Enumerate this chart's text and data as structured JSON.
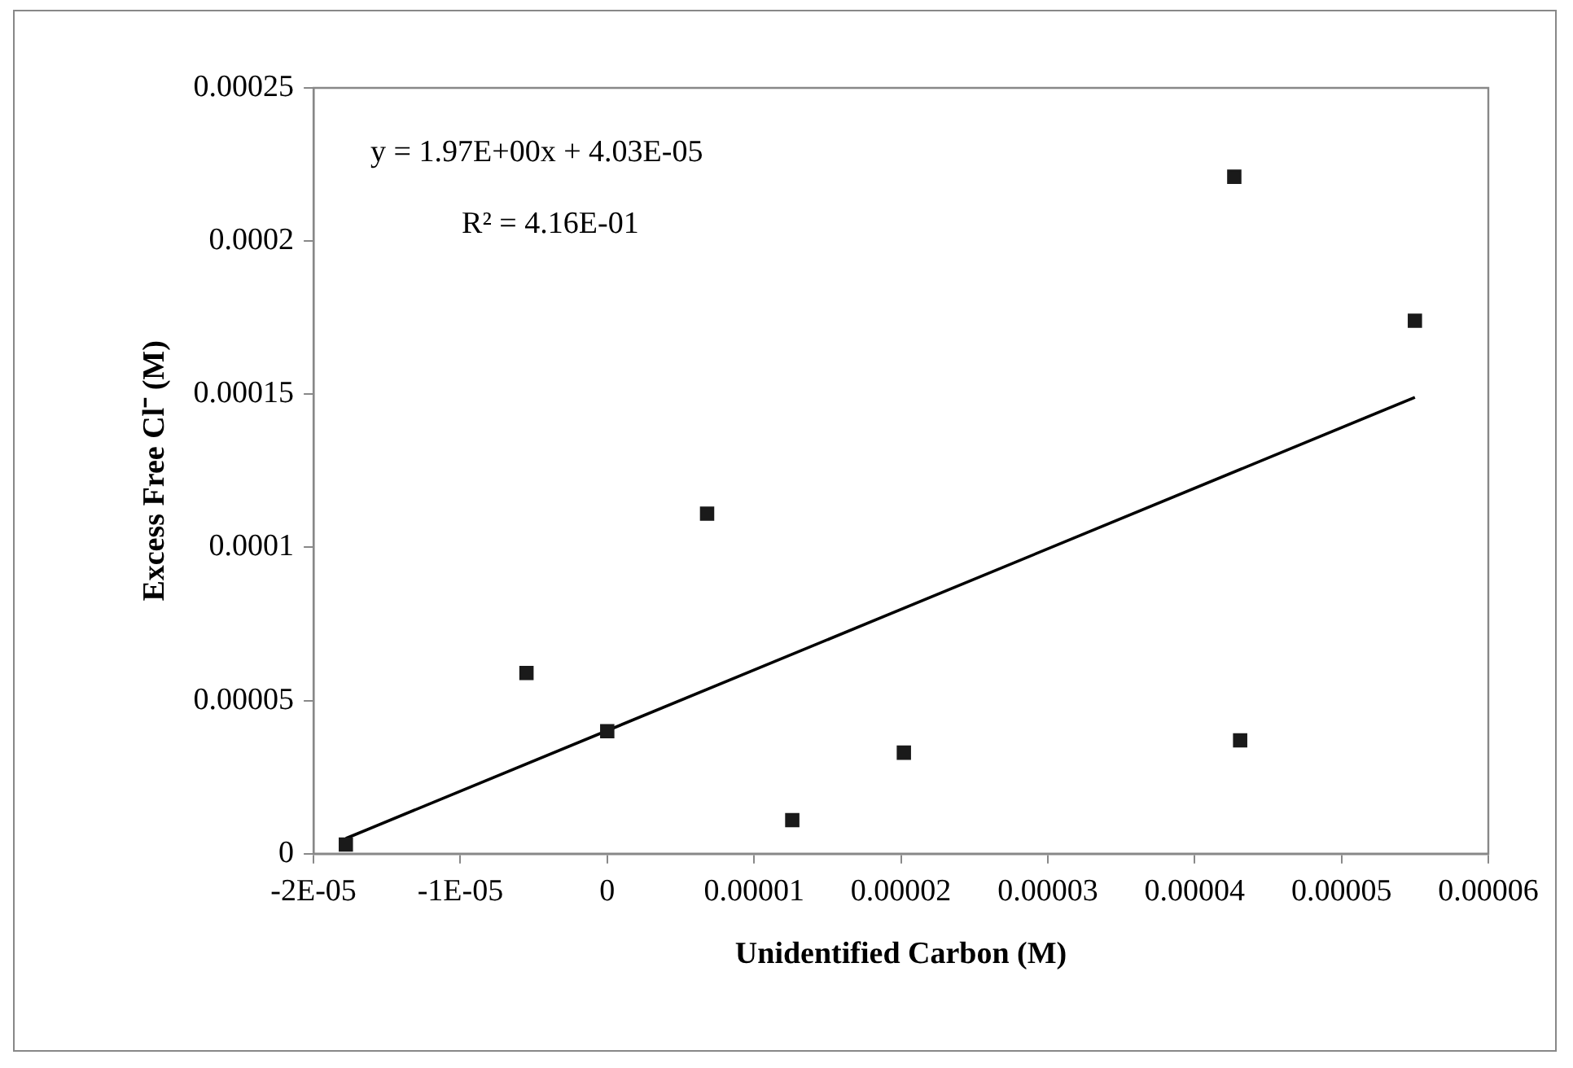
{
  "chart_data": {
    "type": "scatter",
    "xlabel": "Unidentified Carbon (M)",
    "ylabel": "Excess Free Cl⁻ (M)",
    "xlim": [
      -2e-05,
      6e-05
    ],
    "xticks": [
      {
        "value": -2e-05,
        "label": "-2E-05"
      },
      {
        "value": -1e-05,
        "label": "-1E-05"
      },
      0,
      {
        "value": 1e-05,
        "label": "0.00001"
      },
      {
        "value": 2e-05,
        "label": "0.00002"
      },
      {
        "value": 3e-05,
        "label": "0.00003"
      },
      {
        "value": 4e-05,
        "label": "0.00004"
      },
      {
        "value": 5e-05,
        "label": "0.00005"
      },
      {
        "value": 6e-05,
        "label": "0.00006"
      }
    ],
    "ylim": [
      0,
      0.00025
    ],
    "yticks": [
      0,
      {
        "value": 5e-05,
        "label": "0.00005"
      },
      {
        "value": 0.0001,
        "label": "0.0001"
      },
      {
        "value": 0.00015,
        "label": "0.00015"
      },
      {
        "value": 0.0002,
        "label": "0.0002"
      },
      {
        "value": 0.00025,
        "label": "0.00025"
      }
    ],
    "grid": false,
    "legend": false,
    "marker": "square",
    "annotations": [
      "y = 1.97E+00x + 4.03E-05",
      "R² = 4.16E-01"
    ],
    "series": [
      {
        "type": "scatter",
        "color": "#1a1a1a",
        "x": [
          -1.78e-05,
          -5.5e-06,
          0,
          6.8e-06,
          1.26e-05,
          2.02e-05,
          4.27e-05,
          5.5e-05,
          4.31e-05
        ],
        "values": [
          3e-06,
          5.9e-05,
          4e-05,
          0.000111,
          1.1e-05,
          3.3e-05,
          0.000221,
          0.000174,
          3.7e-05
        ]
      },
      {
        "type": "line",
        "color": "#000000",
        "marker": "none",
        "line_style": "solid",
        "x": [
          -1.78e-05,
          5.5e-05
        ],
        "values": [
          5e-06,
          0.000149
        ]
      }
    ]
  }
}
